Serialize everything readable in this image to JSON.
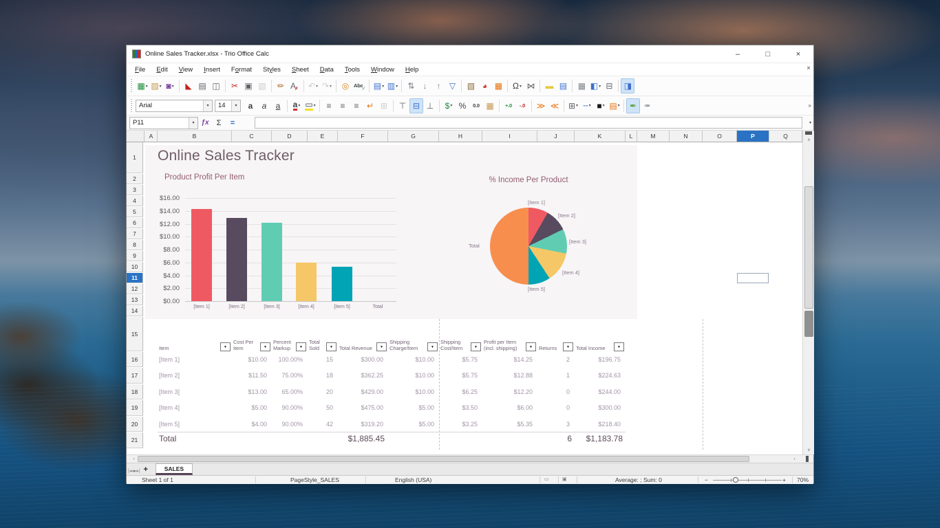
{
  "desktop": {
    "wallpaper": "sunset-clouds-over-sea-with-rocks"
  },
  "window": {
    "title": "Online Sales Tracker.xlsx - Trio Office Calc",
    "controls": {
      "minimize": "–",
      "maximize": "□",
      "close": "×",
      "close_document": "×"
    }
  },
  "menu_bar": {
    "items": [
      {
        "label": "File",
        "accel": 0
      },
      {
        "label": "Edit",
        "accel": 0
      },
      {
        "label": "View",
        "accel": 0
      },
      {
        "label": "Insert",
        "accel": 0
      },
      {
        "label": "Format",
        "accel": 1
      },
      {
        "label": "Styles",
        "accel": 2
      },
      {
        "label": "Sheet",
        "accel": 0
      },
      {
        "label": "Data",
        "accel": 0
      },
      {
        "label": "Tools",
        "accel": 0
      },
      {
        "label": "Window",
        "accel": 0
      },
      {
        "label": "Help",
        "accel": 0
      }
    ]
  },
  "toolbar_standard": {
    "items": [
      {
        "name": "new-document-icon",
        "glyph": "▦",
        "color": "#1e8e3e",
        "dd": true
      },
      {
        "name": "open-folder-icon",
        "glyph": "▨",
        "color": "#c7974f",
        "dd": true
      },
      {
        "name": "save-icon",
        "glyph": "◙",
        "color": "#7b3fa0",
        "dd": true
      },
      "|",
      {
        "name": "export-pdf-icon",
        "glyph": "◣",
        "color": "#c5221f"
      },
      {
        "name": "print-icon",
        "glyph": "▤",
        "color": "#5f6368"
      },
      {
        "name": "print-preview-icon",
        "glyph": "◫",
        "color": "#5f6368"
      },
      "|",
      {
        "name": "cut-icon",
        "glyph": "✂",
        "color": "#c5221f"
      },
      {
        "name": "copy-icon",
        "glyph": "▣",
        "color": "#5f6368"
      },
      {
        "name": "paste-icon",
        "glyph": "▧",
        "color": "#bdbdbd",
        "dim": true
      },
      "|",
      {
        "name": "clone-formatting-icon",
        "glyph": "✏",
        "color": "#b5651d"
      },
      {
        "name": "clear-formatting-icon",
        "glyph": "A",
        "color": "#5f6368",
        "sub": "✗",
        "subcolor": "#d32f2f"
      },
      "|",
      {
        "name": "undo-icon",
        "glyph": "↶",
        "color": "#bdbdbd",
        "dd": true,
        "dim": true
      },
      {
        "name": "redo-icon",
        "glyph": "↷",
        "color": "#bdbdbd",
        "dd": true,
        "dim": true
      },
      "|",
      {
        "name": "find-replace-icon",
        "glyph": "◎",
        "color": "#d4881e"
      },
      {
        "name": "spelling-icon",
        "glyph": "Abc",
        "wide": true,
        "color": "#3c4043",
        "sub": "✓",
        "subcolor": "#1e8e3e"
      },
      "|",
      {
        "name": "insert-row-icon",
        "glyph": "▤",
        "color": "#3d6fd1",
        "dd": true
      },
      {
        "name": "insert-column-icon",
        "glyph": "▥",
        "color": "#3d6fd1",
        "dd": true
      },
      "|",
      {
        "name": "sort-icon",
        "glyph": "⇅",
        "color": "#80868b"
      },
      {
        "name": "sort-ascending-icon",
        "glyph": "↓",
        "color": "#80868b"
      },
      {
        "name": "sort-descending-icon",
        "glyph": "↑",
        "color": "#80868b"
      },
      {
        "name": "autofilter-icon",
        "glyph": "▽",
        "color": "#3d6fd1"
      },
      "|",
      {
        "name": "insert-image-icon",
        "glyph": "▧",
        "color": "#8a6d3b"
      },
      {
        "name": "insert-chart-icon",
        "glyph": "◕",
        "color": "#d93025"
      },
      {
        "name": "insert-pivot-table-icon",
        "glyph": "▦",
        "color": "#e8710a"
      },
      "|",
      {
        "name": "special-character-icon",
        "glyph": "Ω",
        "color": "#3c4043",
        "dd": true
      },
      {
        "name": "hyperlink-icon",
        "glyph": "⋈",
        "color": "#5f6368"
      },
      "|",
      {
        "name": "insert-comment-icon",
        "glyph": "▬",
        "color": "#e3c93f"
      },
      {
        "name": "headers-footers-icon",
        "glyph": "▤",
        "color": "#3d6fd1"
      },
      "|",
      {
        "name": "print-area-icon",
        "glyph": "▦",
        "color": "#80868b"
      },
      {
        "name": "freeze-panes-icon",
        "glyph": "◧",
        "color": "#3d6fd1",
        "dd": true
      },
      {
        "name": "split-window-icon",
        "glyph": "⊟",
        "color": "#5f6368"
      },
      "|",
      {
        "name": "sidebar-icon",
        "glyph": "◨",
        "color": "#3d6fd1",
        "active": true
      }
    ]
  },
  "toolbar_formatting": {
    "font_name": "Arial",
    "font_size": "14",
    "overflow": "»",
    "items": [
      {
        "name": "bold-icon",
        "glyph": "a",
        "cls": "fbold",
        "color": "#3c4043"
      },
      {
        "name": "italic-icon",
        "glyph": "a",
        "cls": "fitalic",
        "color": "#3c4043"
      },
      {
        "name": "underline-icon",
        "glyph": "a",
        "cls": "funder",
        "color": "#3c4043"
      },
      "|",
      {
        "name": "font-color-icon",
        "glyph": "a",
        "cls": "fbold ubar-red",
        "color": "#3c4043",
        "dd": true
      },
      {
        "name": "highlight-color-icon",
        "glyph": "▭",
        "cls": "ubar-yellow",
        "color": "#3c4043",
        "dd": true
      },
      "|",
      {
        "name": "align-left-icon",
        "glyph": "≡",
        "color": "#5f6368"
      },
      {
        "name": "align-center-icon",
        "glyph": "≡",
        "color": "#5f6368"
      },
      {
        "name": "align-right-icon",
        "glyph": "≡",
        "color": "#5f6368"
      },
      {
        "name": "wrap-text-icon",
        "glyph": "↵",
        "color": "#e8710a"
      },
      {
        "name": "merge-cells-icon",
        "glyph": "⊞",
        "color": "#bdbdbd",
        "dim": true
      },
      "|",
      {
        "name": "align-top-icon",
        "glyph": "⊤",
        "color": "#5f6368"
      },
      {
        "name": "center-vertically-icon",
        "glyph": "⊟",
        "color": "#3d6fd1",
        "active": true
      },
      {
        "name": "align-bottom-icon",
        "glyph": "⊥",
        "color": "#5f6368"
      },
      "|",
      {
        "name": "currency-icon",
        "glyph": "$",
        "color": "#1e8e3e",
        "dd": true
      },
      {
        "name": "percent-icon",
        "glyph": "%",
        "color": "#3c4043"
      },
      {
        "name": "number-format-icon",
        "glyph": "0.0",
        "wide": true,
        "color": "#3c4043"
      },
      {
        "name": "date-format-icon",
        "glyph": "▦",
        "color": "#c7974f"
      },
      "|",
      {
        "name": "add-decimal-icon",
        "glyph": "+.0",
        "wide": true,
        "color": "#1e8e3e"
      },
      {
        "name": "delete-decimal-icon",
        "glyph": "-.0",
        "wide": true,
        "color": "#c5221f"
      },
      "|",
      {
        "name": "increase-indent-icon",
        "glyph": "≫",
        "color": "#e8710a"
      },
      {
        "name": "decrease-indent-icon",
        "glyph": "≪",
        "color": "#e8710a"
      },
      "|",
      {
        "name": "borders-icon",
        "glyph": "⊞",
        "color": "#5f6368",
        "dd": true
      },
      {
        "name": "border-style-icon",
        "glyph": "╌",
        "color": "#3d6fd1",
        "dd": true
      },
      {
        "name": "border-color-icon",
        "glyph": "■",
        "color": "#1a1a1a",
        "dd": true
      },
      {
        "name": "conditional-formatting-icon",
        "glyph": "▤",
        "color": "#e8710a",
        "dd": true
      },
      "|",
      {
        "name": "pen-edit-icon",
        "glyph": "✒",
        "color": "#5a9e3a",
        "active": true
      },
      {
        "name": "pen-reverse-icon",
        "glyph": "✒",
        "color": "#9aa0a6",
        "cls": "flipx"
      }
    ]
  },
  "formula_bar": {
    "cell_reference": "P11",
    "input_value": "",
    "function_wizard": "ƒx",
    "sum": "Σ",
    "formula": "="
  },
  "grid": {
    "columns": [
      "A",
      "B",
      "C",
      "D",
      "E",
      "F",
      "G",
      "H",
      "I",
      "J",
      "K",
      "L",
      "M",
      "N",
      "O",
      "P",
      "Q"
    ],
    "selected_column": "P",
    "row_numbers": [
      1,
      2,
      3,
      4,
      5,
      6,
      7,
      8,
      9,
      10,
      11,
      12,
      13,
      14,
      15,
      16,
      17,
      18,
      19,
      20,
      21
    ],
    "selected_row": 11,
    "selection_color": "#2a73c4"
  },
  "sheet": {
    "title": "Online Sales Tracker"
  },
  "chart_data": [
    {
      "type": "bar",
      "title": "Product Profit Per Item",
      "categories": [
        "[Item 1]",
        "[Item 2]",
        "[Item 3]",
        "[Item 4]",
        "[Item 5]",
        "Total"
      ],
      "values": [
        14.25,
        12.88,
        12.2,
        6.0,
        5.35,
        0
      ],
      "colors": [
        "#ef5a62",
        "#584a5f",
        "#60cdb3",
        "#f5c766",
        "#00a4b5",
        "#f78e4e"
      ],
      "xlabel": "",
      "ylabel": "",
      "ylim": [
        0,
        16
      ],
      "yticks": [
        "$16.00",
        "$14.00",
        "$12.00",
        "$10.00",
        "$8.00",
        "$6.00",
        "$4.00",
        "$2.00",
        "$0.00"
      ],
      "grid": true,
      "legend": false
    },
    {
      "type": "pie",
      "title": "% Income Per Product",
      "labels": [
        "[Item 1]",
        "[Item 2]",
        "[Item 3]",
        "[Item 4]",
        "[Item 5]",
        "Total"
      ],
      "values": [
        196.75,
        224.63,
        244.0,
        300.0,
        218.4,
        1183.78
      ],
      "percentages": [
        8.3,
        9.5,
        10.3,
        12.7,
        9.2,
        50.0
      ],
      "colors": [
        "#ef5a62",
        "#584a5f",
        "#60cdb3",
        "#f5c766",
        "#00a4b5",
        "#f78e4e"
      ],
      "legend": false
    }
  ],
  "table": {
    "headers": [
      "Item",
      "Cost Per Item",
      "Percent Markup",
      "Total Sold",
      "Total Revenue",
      "Shipping Charge/Item",
      "Shipping Cost/Item",
      "Profit per Item (incl. shipping)",
      "Returns",
      "Total Income"
    ],
    "rows": [
      [
        "[Item 1]",
        "$10.00",
        "100.00%",
        "15",
        "$300.00",
        "$10.00",
        "$5.75",
        "$14.25",
        "2",
        "$196.75"
      ],
      [
        "[Item 2]",
        "$11.50",
        "75.00%",
        "18",
        "$362.25",
        "$10.00",
        "$5.75",
        "$12.88",
        "1",
        "$224.63"
      ],
      [
        "[Item 3]",
        "$13.00",
        "65.00%",
        "20",
        "$429.00",
        "$10.00",
        "$6.25",
        "$12.20",
        "0",
        "$244.00"
      ],
      [
        "[Item 4]",
        "$5.00",
        "90.00%",
        "50",
        "$475.00",
        "$5.00",
        "$3.50",
        "$6.00",
        "0",
        "$300.00"
      ],
      [
        "[Item 5]",
        "$4.00",
        "90.00%",
        "42",
        "$319.20",
        "$5.00",
        "$3.25",
        "$5.35",
        "3",
        "$218.40"
      ]
    ],
    "total_row": {
      "label": "Total",
      "total_revenue": "$1,885.45",
      "returns": "6",
      "total_income": "$1,183.78"
    }
  },
  "sheet_tabs": {
    "nav": [
      {
        "name": "first-sheet-icon",
        "glyph": "|◂"
      },
      {
        "name": "previous-sheet-icon",
        "glyph": "◂"
      },
      {
        "name": "next-sheet-icon",
        "glyph": "▸"
      },
      {
        "name": "last-sheet-icon",
        "glyph": "▸|"
      }
    ],
    "add_button": "+",
    "active_tab": "SALES"
  },
  "status_bar": {
    "sheet_info": "Sheet 1 of 1",
    "page_style": "PageStyle_SALES",
    "language": "English (USA)",
    "selection_icon": "▭",
    "modified_icon": "▣",
    "summary": "Average: ; Sum: 0",
    "zoom_out": "−",
    "zoom_in": "+",
    "zoom_level": "70%"
  }
}
